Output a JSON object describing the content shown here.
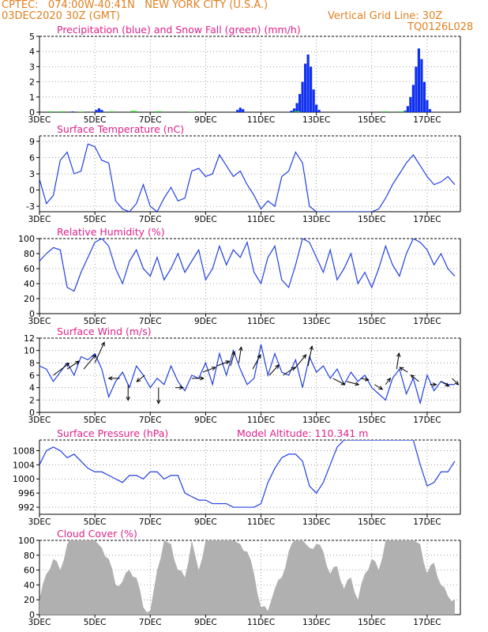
{
  "header": {
    "line1": "CPTEC:   074:00W-40:41N   NEW YORK CITY (U.S.A.)",
    "line2": "03DEC2020 30Z (GMT)",
    "grid_note": "Vertical Grid Line: 30Z",
    "model_code": "TQ0126L028"
  },
  "colors": {
    "header": "#e08020",
    "titles": "#e0208a",
    "line": "#2040e0",
    "bar_precip": "#1030f0",
    "bar_snow": "#20c020",
    "cloud": "#b0b0b0"
  },
  "x_labels": [
    "3DEC",
    "5DEC",
    "7DEC",
    "9DEC",
    "11DEC",
    "13DEC",
    "15DEC",
    "17DEC"
  ],
  "chart_data": [
    {
      "type": "bar",
      "title": "Precipitation (blue) and Snow Fall (green) (mm/h)",
      "ylim": [
        0,
        5
      ],
      "yticks": [
        0,
        1,
        2,
        3,
        4,
        5
      ],
      "grid": true,
      "series": [
        {
          "name": "Precipitation",
          "points": [
            [
              4.2,
              0.05
            ],
            [
              5.05,
              0.15
            ],
            [
              5.15,
              0.25
            ],
            [
              5.25,
              0.15
            ],
            [
              10.15,
              0.15
            ],
            [
              10.25,
              0.3
            ],
            [
              10.35,
              0.2
            ],
            [
              12.1,
              0.1
            ],
            [
              12.2,
              0.25
            ],
            [
              12.3,
              0.6
            ],
            [
              12.4,
              1.2
            ],
            [
              12.5,
              2.0
            ],
            [
              12.6,
              3.2
            ],
            [
              12.7,
              3.8
            ],
            [
              12.8,
              3.0
            ],
            [
              12.9,
              1.5
            ],
            [
              13.0,
              0.5
            ],
            [
              13.1,
              0.15
            ],
            [
              16.2,
              0.1
            ],
            [
              16.3,
              0.4
            ],
            [
              16.4,
              1.0
            ],
            [
              16.5,
              1.8
            ],
            [
              16.6,
              3.0
            ],
            [
              16.7,
              4.2
            ],
            [
              16.8,
              3.5
            ],
            [
              16.9,
              2.0
            ],
            [
              17.0,
              0.8
            ],
            [
              17.1,
              0.2
            ]
          ]
        },
        {
          "name": "Snow Fall",
          "points": [
            [
              3.4,
              0.05
            ],
            [
              3.8,
              0.05
            ],
            [
              4.5,
              0.04
            ],
            [
              5.6,
              0.05
            ],
            [
              6.4,
              0.08
            ],
            [
              7.3,
              0.06
            ],
            [
              8.5,
              0.04
            ],
            [
              12.3,
              0.06
            ],
            [
              15.5,
              0.05
            ],
            [
              16.1,
              0.05
            ]
          ]
        }
      ]
    },
    {
      "type": "line",
      "title": "Surface Temperature (nC)",
      "ylim": [
        -4,
        10
      ],
      "yticks": [
        -3,
        0,
        3,
        6,
        9
      ],
      "grid": true,
      "series": [
        {
          "x": [
            3.0,
            3.25,
            3.5,
            3.75,
            4.0,
            4.25,
            4.5,
            4.75,
            5.0,
            5.25,
            5.5,
            5.75,
            6.0,
            6.25,
            6.5,
            6.75,
            7.0,
            7.25,
            7.5,
            7.75,
            8.0,
            8.25,
            8.5,
            8.75,
            9.0,
            9.25,
            9.5,
            9.75,
            10.0,
            10.25,
            10.5,
            10.75,
            11.0,
            11.25,
            11.5,
            11.75,
            12.0,
            12.25,
            12.5,
            12.75,
            13.0,
            13.25,
            13.5,
            13.75,
            14.0,
            14.25,
            14.5,
            14.75,
            15.0,
            15.25,
            15.5,
            15.75,
            16.0,
            16.25,
            16.5,
            16.75,
            17.0,
            17.25,
            17.5,
            17.75,
            18.0
          ],
          "values": [
            2.0,
            -2.5,
            -1.0,
            5.5,
            7.0,
            3.0,
            3.5,
            8.5,
            8.0,
            5.5,
            5.0,
            -2.0,
            -3.5,
            -4.0,
            -2.5,
            1.0,
            -3.0,
            -4.0,
            -1.5,
            0.5,
            -2.0,
            -1.5,
            3.5,
            4.0,
            2.5,
            3.0,
            6.5,
            4.5,
            2.5,
            3.5,
            1.0,
            -1.0,
            -3.5,
            -2.0,
            -3.0,
            2.5,
            3.5,
            7.0,
            5.0,
            -3.0,
            -4.0,
            -4.0,
            -4.0,
            -4.0,
            -4.0,
            -4.0,
            -4.0,
            -4.0,
            -4.0,
            -3.5,
            -1.5,
            1.0,
            3.0,
            5.0,
            6.5,
            4.5,
            2.5,
            1.0,
            1.5,
            2.5,
            1.0
          ]
        }
      ]
    },
    {
      "type": "line",
      "title": "Relative Humidity (%)",
      "ylim": [
        0,
        100
      ],
      "yticks": [
        0,
        20,
        40,
        60,
        80,
        100
      ],
      "grid": true,
      "series": [
        {
          "x": [
            3.0,
            3.25,
            3.5,
            3.75,
            4.0,
            4.25,
            4.5,
            4.75,
            5.0,
            5.25,
            5.5,
            5.75,
            6.0,
            6.25,
            6.5,
            6.75,
            7.0,
            7.25,
            7.5,
            7.75,
            8.0,
            8.25,
            8.5,
            8.75,
            9.0,
            9.25,
            9.5,
            9.75,
            10.0,
            10.25,
            10.5,
            10.75,
            11.0,
            11.25,
            11.5,
            11.75,
            12.0,
            12.25,
            12.5,
            12.75,
            13.0,
            13.25,
            13.5,
            13.75,
            14.0,
            14.25,
            14.5,
            14.75,
            15.0,
            15.25,
            15.5,
            15.75,
            16.0,
            16.25,
            16.5,
            16.75,
            17.0,
            17.25,
            17.5,
            17.75,
            18.0
          ],
          "values": [
            70,
            80,
            88,
            85,
            35,
            30,
            55,
            75,
            95,
            100,
            90,
            60,
            40,
            70,
            85,
            60,
            50,
            75,
            45,
            60,
            80,
            55,
            70,
            85,
            45,
            60,
            90,
            65,
            85,
            75,
            95,
            55,
            40,
            75,
            90,
            45,
            35,
            65,
            100,
            95,
            75,
            55,
            85,
            45,
            60,
            80,
            40,
            55,
            35,
            60,
            90,
            65,
            50,
            80,
            100,
            95,
            85,
            65,
            80,
            60,
            50
          ]
        }
      ]
    },
    {
      "type": "line",
      "title": "Surface Wind (m/s)",
      "ylim": [
        0,
        12
      ],
      "yticks": [
        0,
        2,
        4,
        6,
        8,
        10,
        12
      ],
      "grid": true,
      "series": [
        {
          "x": [
            3.0,
            3.25,
            3.5,
            3.75,
            4.0,
            4.25,
            4.5,
            4.75,
            5.0,
            5.25,
            5.5,
            5.75,
            6.0,
            6.25,
            6.5,
            6.75,
            7.0,
            7.25,
            7.5,
            7.75,
            8.0,
            8.25,
            8.5,
            8.75,
            9.0,
            9.25,
            9.5,
            9.75,
            10.0,
            10.25,
            10.5,
            10.75,
            11.0,
            11.25,
            11.5,
            11.75,
            12.0,
            12.25,
            12.5,
            12.75,
            13.0,
            13.25,
            13.5,
            13.75,
            14.0,
            14.25,
            14.5,
            14.75,
            15.0,
            15.25,
            15.5,
            15.75,
            16.0,
            16.25,
            16.5,
            16.75,
            17.0,
            17.25,
            17.5,
            17.75,
            18.0
          ],
          "values": [
            7.5,
            7.0,
            5.0,
            6.5,
            8.0,
            6.0,
            9.0,
            8.5,
            9.5,
            7.0,
            2.5,
            5.0,
            6.5,
            4.0,
            7.5,
            6.0,
            4.0,
            5.5,
            4.5,
            7.5,
            5.0,
            3.5,
            6.0,
            5.5,
            8.0,
            4.5,
            9.5,
            6.0,
            10.0,
            7.0,
            4.5,
            5.5,
            11.0,
            6.0,
            9.5,
            6.5,
            6.0,
            8.5,
            4.0,
            9.0,
            6.5,
            7.5,
            5.5,
            7.0,
            4.5,
            6.5,
            5.0,
            6.0,
            4.0,
            3.0,
            2.0,
            5.5,
            7.0,
            3.0,
            5.5,
            1.5,
            6.0,
            3.5,
            5.0,
            4.5,
            4.5
          ]
        }
      ],
      "vectors": [
        [
          3.5,
          6,
          2,
          1.5
        ],
        [
          4.0,
          7,
          1.5,
          1
        ],
        [
          4.6,
          7,
          1.5,
          1.8
        ],
        [
          5.0,
          8,
          1.2,
          2.6
        ],
        [
          5.9,
          5.5,
          -1.4,
          0
        ],
        [
          6.2,
          4.5,
          0,
          -2
        ],
        [
          6.8,
          6,
          -1,
          -0.8
        ],
        [
          7.3,
          4,
          0,
          -2
        ],
        [
          7.9,
          4,
          1,
          0
        ],
        [
          8.5,
          5.5,
          1.5,
          0
        ],
        [
          8.9,
          6.5,
          1.6,
          0.6
        ],
        [
          9.4,
          7.5,
          1.6,
          0.6
        ],
        [
          9.9,
          7.5,
          0.5,
          1.8
        ],
        [
          10.2,
          8,
          0.3,
          2
        ],
        [
          10.7,
          7,
          1,
          1.8
        ],
        [
          11.3,
          6,
          1.2,
          1.3
        ],
        [
          11.8,
          6,
          1.5,
          1
        ],
        [
          12.2,
          7,
          1.5,
          1.8
        ],
        [
          12.7,
          7.5,
          0.5,
          2.5
        ],
        [
          13.6,
          5.5,
          1.5,
          -0.8
        ],
        [
          14.1,
          5,
          1.5,
          -0.4
        ],
        [
          14.6,
          5.5,
          1,
          -0.2
        ],
        [
          15.1,
          4.5,
          1,
          -0.6
        ],
        [
          15.5,
          4.5,
          0.6,
          0.8
        ],
        [
          15.9,
          7,
          0.3,
          2
        ],
        [
          16.3,
          6.5,
          -1,
          0.6
        ],
        [
          16.7,
          5,
          -1,
          0.8
        ],
        [
          17.1,
          4.5,
          0.8,
          0
        ],
        [
          17.5,
          5,
          1,
          -0.6
        ],
        [
          17.9,
          5.5,
          0.8,
          -0.8
        ]
      ]
    },
    {
      "type": "line",
      "title": "Surface Pressure (hPa)",
      "annotation": "Model Altitude: 110.341 m",
      "ylim": [
        990,
        1011
      ],
      "yticks": [
        992,
        996,
        1000,
        1004,
        1008
      ],
      "grid": true,
      "series": [
        {
          "x": [
            3.0,
            3.25,
            3.5,
            3.75,
            4.0,
            4.25,
            4.5,
            4.75,
            5.0,
            5.25,
            5.5,
            5.75,
            6.0,
            6.25,
            6.5,
            6.75,
            7.0,
            7.25,
            7.5,
            7.75,
            8.0,
            8.25,
            8.5,
            8.75,
            9.0,
            9.25,
            9.5,
            9.75,
            10.0,
            10.25,
            10.5,
            10.75,
            11.0,
            11.25,
            11.5,
            11.75,
            12.0,
            12.25,
            12.5,
            12.75,
            13.0,
            13.25,
            13.5,
            13.75,
            14.0,
            14.25,
            14.5,
            14.75,
            15.0,
            15.25,
            15.5,
            15.75,
            16.0,
            16.25,
            16.5,
            16.75,
            17.0,
            17.25,
            17.5,
            17.75,
            18.0
          ],
          "values": [
            1004,
            1008,
            1009,
            1008,
            1006,
            1007,
            1005,
            1003,
            1002,
            1002,
            1001,
            1000,
            999,
            1001,
            1001,
            1000,
            1002,
            1002,
            1000,
            1001,
            1001,
            996,
            995,
            994,
            994,
            993,
            993,
            993,
            992,
            992,
            992,
            992,
            993,
            999,
            1003,
            1006,
            1007,
            1007,
            1005,
            998,
            996,
            999,
            1004,
            1009,
            1011,
            1011,
            1011,
            1011,
            1011,
            1011,
            1011,
            1011,
            1011,
            1011,
            1011,
            1004,
            998,
            999,
            1002,
            1002,
            1005
          ]
        }
      ]
    },
    {
      "type": "bar",
      "title": "Cloud Cover (%)",
      "ylim": [
        0,
        100
      ],
      "yticks": [
        0,
        20,
        40,
        60,
        80,
        100
      ],
      "grid": true,
      "series": [
        {
          "x": [
            3.0,
            3.25,
            3.5,
            3.75,
            4.0,
            4.25,
            4.5,
            4.75,
            5.0,
            5.25,
            5.5,
            5.75,
            6.0,
            6.25,
            6.5,
            6.75,
            7.0,
            7.25,
            7.5,
            7.75,
            8.0,
            8.25,
            8.5,
            8.75,
            9.0,
            9.25,
            9.5,
            9.75,
            10.0,
            10.25,
            10.5,
            10.75,
            11.0,
            11.25,
            11.5,
            11.75,
            12.0,
            12.25,
            12.5,
            12.75,
            13.0,
            13.25,
            13.5,
            13.75,
            14.0,
            14.25,
            14.5,
            14.75,
            15.0,
            15.25,
            15.5,
            15.75,
            16.0,
            16.25,
            16.5,
            16.75,
            17.0,
            17.25,
            17.5,
            17.75,
            18.0
          ],
          "values": [
            20,
            55,
            75,
            60,
            95,
            100,
            100,
            100,
            100,
            90,
            75,
            40,
            45,
            60,
            50,
            10,
            5,
            60,
            100,
            95,
            60,
            50,
            100,
            60,
            100,
            100,
            100,
            100,
            100,
            95,
            85,
            55,
            10,
            5,
            35,
            50,
            85,
            100,
            100,
            90,
            95,
            85,
            55,
            65,
            35,
            50,
            20,
            55,
            75,
            60,
            100,
            100,
            100,
            100,
            100,
            95,
            55,
            70,
            40,
            25,
            20
          ]
        }
      ]
    }
  ]
}
